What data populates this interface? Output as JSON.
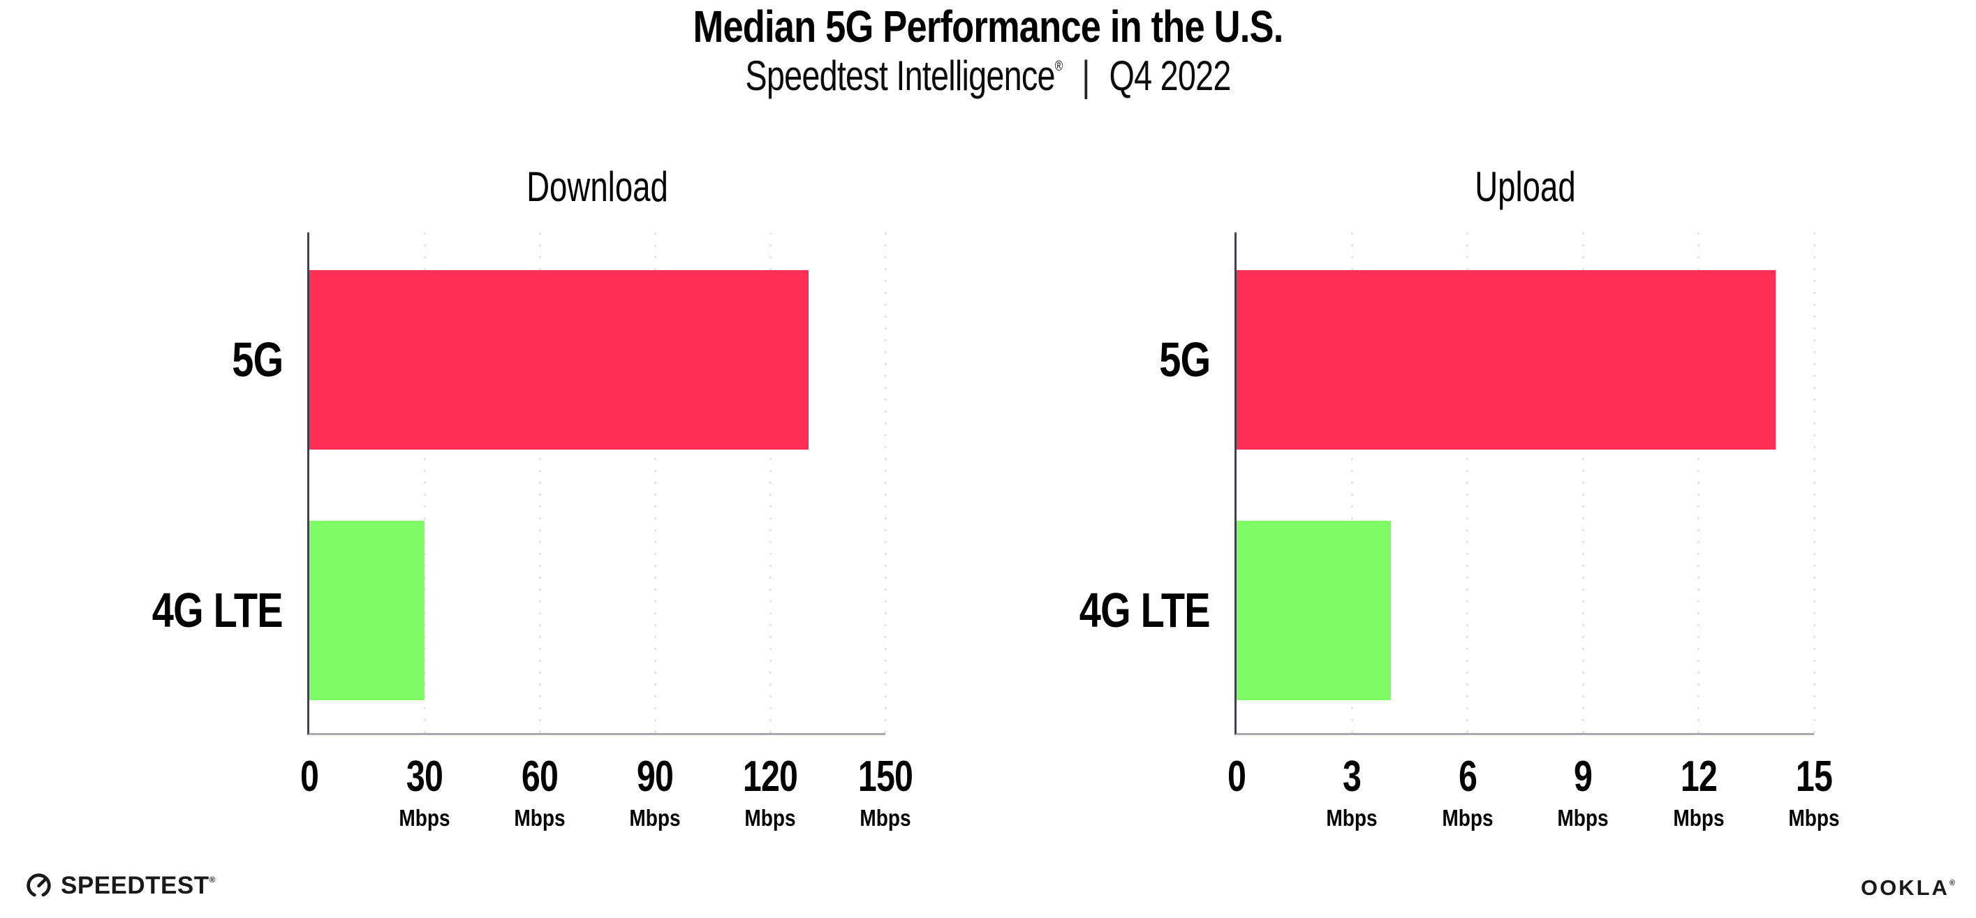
{
  "header": {
    "title": "Median 5G Performance in the U.S.",
    "subtitle": {
      "brand": "Speedtest Intelligence",
      "registered_mark": "®",
      "separator": "|",
      "period": "Q4 2022"
    }
  },
  "chart_data": [
    {
      "type": "bar",
      "orientation": "horizontal",
      "title": "Download",
      "categories": [
        "5G",
        "4G LTE"
      ],
      "values": [
        130,
        30
      ],
      "unit": "Mbps",
      "xlim": [
        0,
        150
      ],
      "xticks": [
        0,
        30,
        60,
        90,
        120,
        150
      ],
      "bar_colors": [
        "#FF2E56",
        "#80FC66"
      ],
      "grid": "vertical-dotted",
      "legend_position": "none"
    },
    {
      "type": "bar",
      "orientation": "horizontal",
      "title": "Upload",
      "categories": [
        "5G",
        "4G LTE"
      ],
      "values": [
        14,
        4
      ],
      "unit": "Mbps",
      "xlim": [
        0,
        15
      ],
      "xticks": [
        0,
        3,
        6,
        9,
        12,
        15
      ],
      "bar_colors": [
        "#FF2E56",
        "#80FC66"
      ],
      "grid": "vertical-dotted",
      "legend_position": "none"
    }
  ],
  "footer": {
    "speedtest_label": "SPEEDTEST",
    "speedtest_mark": "®",
    "ookla_label": "OOKLA",
    "ookla_mark": "®"
  },
  "colors": {
    "bar_5g": "#FF2E56",
    "bar_4g_lte": "#80FC66",
    "gridline": "#E2E2EE",
    "y_axis": "#41414D",
    "x_axis": "#A8A8B0",
    "text": "#000000",
    "background": "#FFFFFF"
  }
}
